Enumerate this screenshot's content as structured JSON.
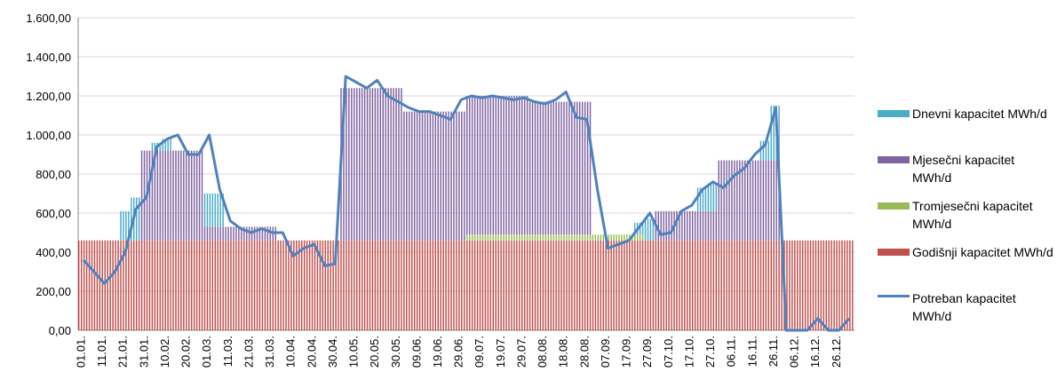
{
  "chart_data": {
    "type": "bar",
    "stacked": true,
    "grid": true,
    "legend": "right",
    "ylim": [
      0,
      1600
    ],
    "yticks": [
      {
        "value": 0,
        "label": "0,00"
      },
      {
        "value": 200,
        "label": "200,00"
      },
      {
        "value": 400,
        "label": "400,00"
      },
      {
        "value": 600,
        "label": "600,00"
      },
      {
        "value": 800,
        "label": "800,00"
      },
      {
        "value": 1000,
        "label": "1.000,00"
      },
      {
        "value": 1200,
        "label": "1.200,00"
      },
      {
        "value": 1400,
        "label": "1.400,00"
      },
      {
        "value": 1600,
        "label": "1.600,00"
      }
    ],
    "categories": [
      "01.01.",
      null,
      "11.01.",
      null,
      "21.01.",
      null,
      "31.01.",
      null,
      "10.02.",
      null,
      "20.02.",
      null,
      "01.03.",
      null,
      "11.03.",
      null,
      "21.03.",
      null,
      "31.03.",
      null,
      "10.04.",
      null,
      "20.04.",
      null,
      "30.04.",
      null,
      "10.05.",
      null,
      "20.05.",
      null,
      "30.05.",
      null,
      "09.06.",
      null,
      "19.06.",
      null,
      "29.06.",
      null,
      "09.07.",
      null,
      "19.07.",
      null,
      "29.07.",
      null,
      "08.08.",
      null,
      "18.08.",
      null,
      "28.08.",
      null,
      "07.09.",
      null,
      "17.09.",
      null,
      "27.09.",
      null,
      "07.10.",
      null,
      "17.10.",
      null,
      "27.10.",
      null,
      "06.11.",
      null,
      "16.11.",
      null,
      "26.11.",
      null,
      "06.12.",
      null,
      "16.12.",
      null,
      "26.12.",
      null
    ],
    "series": [
      {
        "name": "Godišnji kapacitet MWh/d",
        "color": "#c0504d",
        "values": [
          460,
          460,
          460,
          460,
          460,
          460,
          460,
          460,
          460,
          460,
          460,
          460,
          460,
          460,
          460,
          460,
          460,
          460,
          460,
          460,
          460,
          460,
          460,
          460,
          460,
          460,
          460,
          460,
          460,
          460,
          460,
          460,
          460,
          460,
          460,
          460,
          460,
          460,
          460,
          460,
          460,
          460,
          460,
          460,
          460,
          460,
          460,
          460,
          460,
          460,
          460,
          460,
          460,
          460,
          460,
          460,
          460,
          460,
          460,
          460,
          460,
          460,
          460,
          460,
          460,
          460,
          460,
          460,
          460,
          460,
          460,
          460,
          460,
          460
        ]
      },
      {
        "name": "Tromjesečni kapacitet MWh/d",
        "color": "#9bbb59",
        "values": [
          0,
          0,
          0,
          0,
          0,
          0,
          0,
          0,
          0,
          0,
          0,
          0,
          0,
          0,
          0,
          0,
          0,
          0,
          0,
          0,
          0,
          0,
          0,
          0,
          0,
          0,
          0,
          0,
          0,
          0,
          0,
          0,
          0,
          0,
          0,
          0,
          0,
          30,
          30,
          30,
          30,
          30,
          30,
          30,
          30,
          30,
          30,
          30,
          30,
          30,
          30,
          30,
          30,
          30,
          0,
          0,
          0,
          0,
          0,
          0,
          0,
          0,
          0,
          0,
          0,
          0,
          0,
          0,
          0,
          0,
          0,
          0,
          0,
          0
        ]
      },
      {
        "name": "Mjesečni kapacitet MWh/d",
        "color": "#8064a2",
        "values": [
          0,
          0,
          0,
          0,
          0,
          0,
          460,
          460,
          460,
          460,
          460,
          460,
          70,
          70,
          70,
          70,
          70,
          70,
          70,
          0,
          0,
          0,
          0,
          0,
          0,
          780,
          780,
          780,
          780,
          780,
          780,
          660,
          660,
          660,
          660,
          660,
          660,
          710,
          710,
          710,
          710,
          710,
          710,
          680,
          680,
          680,
          680,
          680,
          680,
          0,
          0,
          0,
          0,
          0,
          0,
          150,
          150,
          150,
          150,
          150,
          150,
          410,
          410,
          410,
          410,
          410,
          410,
          0,
          0,
          0,
          0,
          0,
          0,
          0
        ]
      },
      {
        "name": "Dnevni kapacitet MWh/d",
        "color": "#4bacc6",
        "values": [
          0,
          0,
          0,
          0,
          150,
          220,
          0,
          40,
          60,
          0,
          0,
          0,
          170,
          170,
          0,
          0,
          0,
          0,
          0,
          0,
          0,
          0,
          0,
          0,
          0,
          0,
          0,
          0,
          0,
          0,
          0,
          0,
          0,
          0,
          0,
          0,
          0,
          0,
          0,
          0,
          0,
          0,
          0,
          0,
          0,
          0,
          0,
          0,
          0,
          0,
          0,
          0,
          0,
          60,
          110,
          0,
          0,
          0,
          0,
          120,
          140,
          0,
          0,
          0,
          0,
          100,
          280,
          0,
          0,
          0,
          0,
          0,
          0,
          0
        ]
      },
      {
        "name": "Potreban kapacitet MWh/d",
        "color": "#4f81bd",
        "kind": "line",
        "values": [
          360,
          300,
          240,
          300,
          400,
          620,
          680,
          940,
          980,
          1000,
          900,
          900,
          1000,
          720,
          560,
          520,
          500,
          520,
          500,
          500,
          380,
          420,
          440,
          330,
          340,
          1300,
          1270,
          1240,
          1280,
          1200,
          1170,
          1140,
          1120,
          1120,
          1100,
          1080,
          1180,
          1200,
          1190,
          1200,
          1190,
          1180,
          1190,
          1170,
          1160,
          1180,
          1220,
          1090,
          1080,
          720,
          420,
          440,
          460,
          530,
          600,
          490,
          500,
          610,
          640,
          720,
          760,
          730,
          790,
          830,
          900,
          950,
          1140,
          0,
          0,
          0,
          60,
          0,
          0,
          60
        ]
      }
    ]
  }
}
